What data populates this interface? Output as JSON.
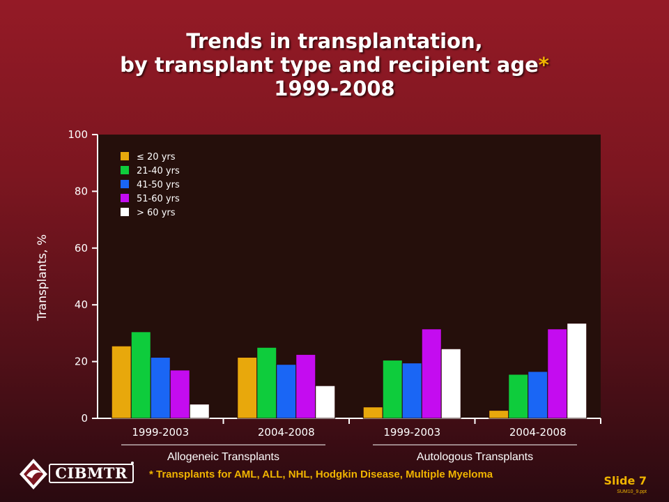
{
  "title": {
    "line1": "Trends in transplantation,",
    "line2": "by transplant type and recipient age",
    "star": "*",
    "line3": "1999-2008"
  },
  "colors": {
    "le20": "#e8a80c",
    "a21_40": "#0ecc3c",
    "a41_50": "#1a66f5",
    "a51_60": "#c40cf0",
    "gt60": "#ffffff",
    "plot_bg": "#250f0b",
    "accent": "#f0b400"
  },
  "chart_data": {
    "type": "bar",
    "ylabel": "Transplants, %",
    "ylim": [
      0,
      100
    ],
    "yticks": [
      "0",
      "20",
      "40",
      "60",
      "80",
      "100"
    ],
    "categories": [
      "1999-2003",
      "2004-2008",
      "1999-2003",
      "2004-2008"
    ],
    "groups": [
      {
        "label": "Allogeneic Transplants",
        "categories": [
          0,
          1
        ]
      },
      {
        "label": "Autologous Transplants",
        "categories": [
          2,
          3
        ]
      }
    ],
    "legend_position": "top-left",
    "series": [
      {
        "name": "≤ 20 yrs",
        "color": "#e8a80c",
        "values": [
          25.5,
          21.5,
          4.0,
          2.8
        ]
      },
      {
        "name": "21-40 yrs",
        "color": "#0ecc3c",
        "values": [
          30.5,
          25.0,
          20.5,
          15.5
        ]
      },
      {
        "name": "41-50 yrs",
        "color": "#1a66f5",
        "values": [
          21.5,
          19.0,
          19.5,
          16.5
        ]
      },
      {
        "name": "51-60 yrs",
        "color": "#c40cf0",
        "values": [
          17.0,
          22.5,
          31.5,
          31.5
        ]
      },
      {
        "name": "> 60 yrs",
        "color": "#ffffff",
        "values": [
          5.0,
          11.5,
          24.5,
          33.5
        ]
      }
    ]
  },
  "footnote": "* Transplants for AML, ALL, NHL, Hodgkin Disease, Multiple Myeloma",
  "slide_number": "Slide 7",
  "file_ref": "SUM10_9.ppt",
  "logo": {
    "text": "CIBMTR",
    "icon": "cibmtr-diamond-icon"
  }
}
